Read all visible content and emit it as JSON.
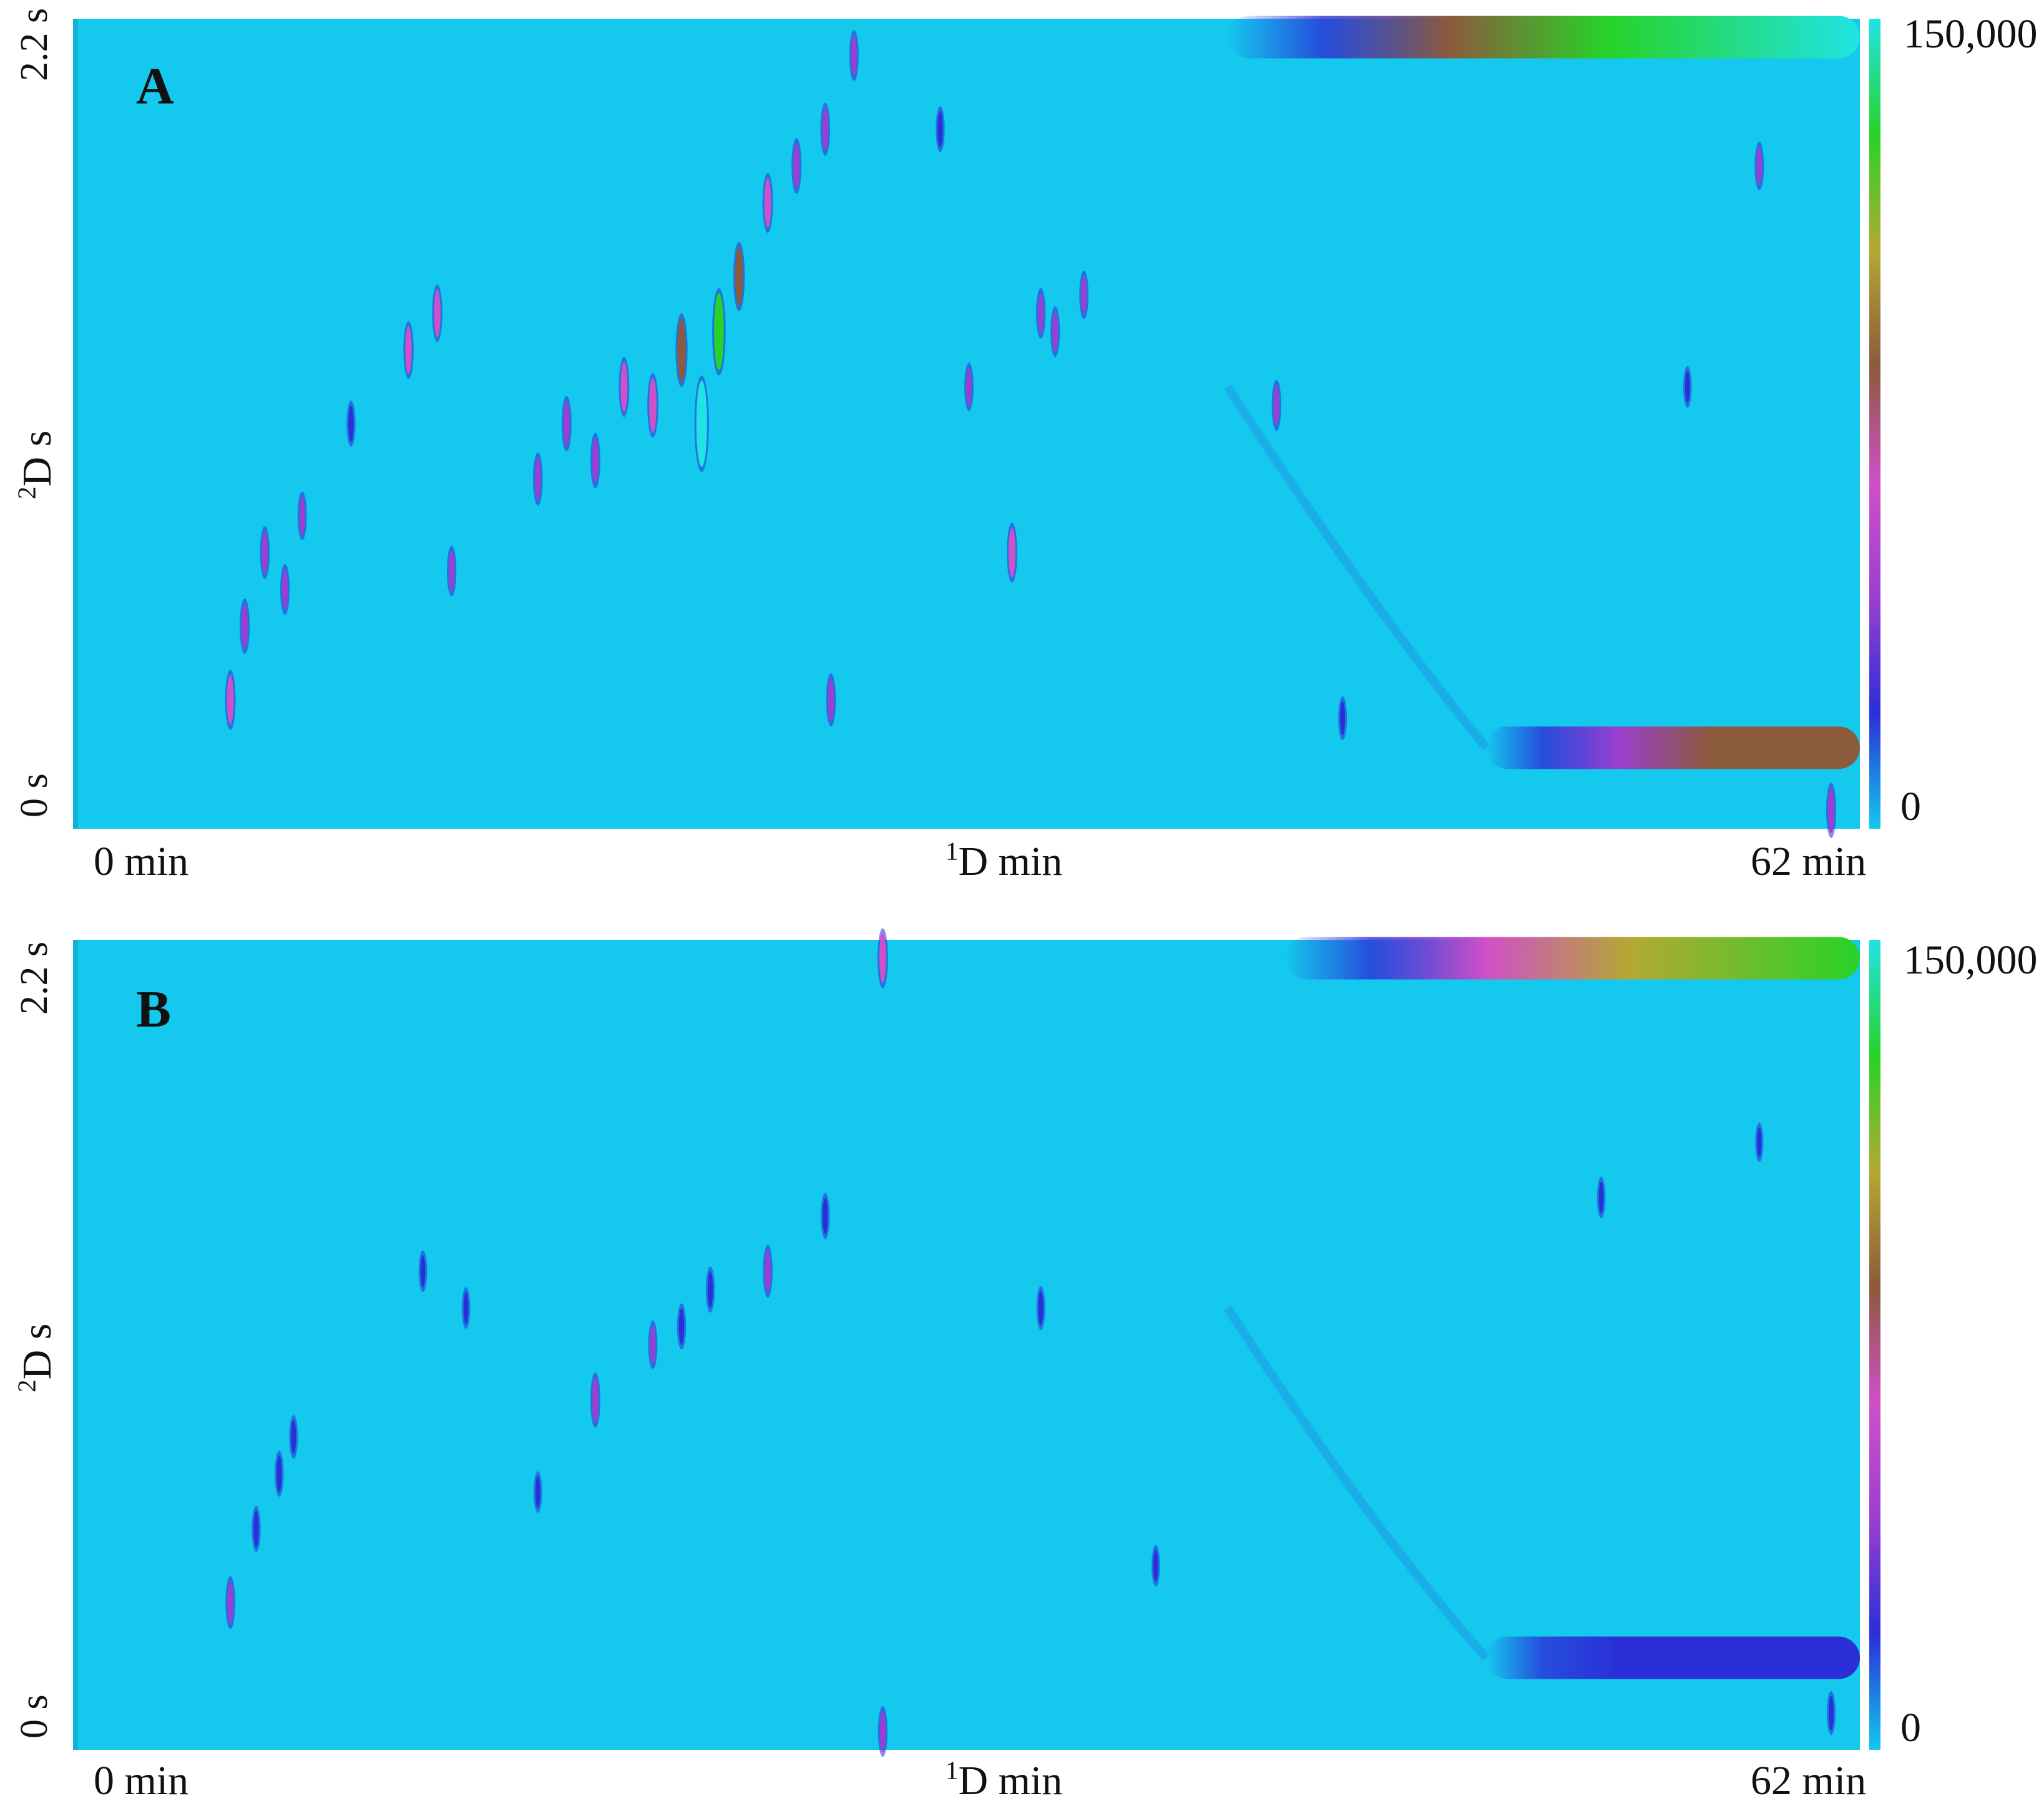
{
  "chart_data": [
    {
      "type": "heatmap",
      "panel": "A",
      "xlabel_sup": "1",
      "xlabel": "D min",
      "ylabel_sup": "2",
      "ylabel": "D s",
      "x_tick_start": "0 min",
      "x_tick_end": "62 min",
      "y_tick_top": "2.2 s",
      "y_tick_bottom": "0 s",
      "xlim": [
        0,
        62
      ],
      "ylim": [
        0,
        2.2
      ],
      "colorbar": {
        "min_label": "0",
        "max_label": "150,000",
        "range": [
          0,
          150000
        ],
        "colors": [
          "#14c8ee",
          "#2a2fd8",
          "#9a3fd0",
          "#d050c8",
          "#8c5a3c",
          "#b4a832",
          "#27d327",
          "#20e4e4"
        ]
      },
      "background_color": "#14c8ee",
      "bands": [
        {
          "name": "column bleed top",
          "x_start": 40,
          "x_end": 62,
          "y": 2.15,
          "peak": 150000
        },
        {
          "name": "column bleed bottom",
          "x_start": 49,
          "x_end": 62,
          "y": 0.22,
          "peak": 90000
        }
      ],
      "peaks": [
        {
          "x": 5.3,
          "y": 0.35,
          "i": 60000
        },
        {
          "x": 5.8,
          "y": 0.55,
          "i": 50000
        },
        {
          "x": 6.5,
          "y": 0.75,
          "i": 45000
        },
        {
          "x": 7.2,
          "y": 0.65,
          "i": 40000
        },
        {
          "x": 7.8,
          "y": 0.85,
          "i": 35000
        },
        {
          "x": 9.5,
          "y": 1.1,
          "i": 30000
        },
        {
          "x": 11.5,
          "y": 1.3,
          "i": 55000
        },
        {
          "x": 12.5,
          "y": 1.4,
          "i": 55000
        },
        {
          "x": 13.0,
          "y": 0.7,
          "i": 40000
        },
        {
          "x": 16.0,
          "y": 0.95,
          "i": 45000
        },
        {
          "x": 17.0,
          "y": 1.1,
          "i": 50000
        },
        {
          "x": 18.0,
          "y": 1.0,
          "i": 50000
        },
        {
          "x": 19.0,
          "y": 1.2,
          "i": 60000
        },
        {
          "x": 20.0,
          "y": 1.15,
          "i": 70000
        },
        {
          "x": 21.0,
          "y": 1.3,
          "i": 90000
        },
        {
          "x": 21.7,
          "y": 1.1,
          "i": 140000
        },
        {
          "x": 22.3,
          "y": 1.35,
          "i": 120000
        },
        {
          "x": 23.0,
          "y": 1.5,
          "i": 80000
        },
        {
          "x": 24.0,
          "y": 1.7,
          "i": 60000
        },
        {
          "x": 25.0,
          "y": 1.8,
          "i": 50000
        },
        {
          "x": 26.0,
          "y": 1.9,
          "i": 45000
        },
        {
          "x": 27.0,
          "y": 2.1,
          "i": 40000
        },
        {
          "x": 26.2,
          "y": 0.35,
          "i": 45000
        },
        {
          "x": 30.0,
          "y": 1.9,
          "i": 30000
        },
        {
          "x": 31.0,
          "y": 1.2,
          "i": 35000
        },
        {
          "x": 32.5,
          "y": 0.75,
          "i": 60000
        },
        {
          "x": 33.5,
          "y": 1.4,
          "i": 40000
        },
        {
          "x": 34.0,
          "y": 1.35,
          "i": 40000
        },
        {
          "x": 35.0,
          "y": 1.45,
          "i": 35000
        },
        {
          "x": 41.7,
          "y": 1.15,
          "i": 40000
        },
        {
          "x": 44.0,
          "y": 0.3,
          "i": 25000
        },
        {
          "x": 56.0,
          "y": 1.2,
          "i": 20000
        },
        {
          "x": 58.5,
          "y": 1.8,
          "i": 35000
        },
        {
          "x": 61.0,
          "y": 0.05,
          "i": 50000
        }
      ]
    },
    {
      "type": "heatmap",
      "panel": "B",
      "xlabel_sup": "1",
      "xlabel": "D min",
      "ylabel_sup": "2",
      "ylabel": "D s",
      "x_tick_start": "0 min",
      "x_tick_end": "62 min",
      "y_tick_top": "2.2 s",
      "y_tick_bottom": "0 s",
      "xlim": [
        0,
        62
      ],
      "ylim": [
        0,
        2.2
      ],
      "colorbar": {
        "min_label": "0",
        "max_label": "150,000",
        "range": [
          0,
          150000
        ],
        "colors": [
          "#14c8ee",
          "#2a2fd8",
          "#9a3fd0",
          "#d050c8",
          "#8c5a3c",
          "#b4a832",
          "#27d327",
          "#20e4e4"
        ]
      },
      "background_color": "#14c8ee",
      "bands": [
        {
          "name": "column bleed top",
          "x_start": 42,
          "x_end": 62,
          "y": 2.15,
          "peak": 120000
        },
        {
          "name": "column bleed bottom",
          "x_start": 49,
          "x_end": 62,
          "y": 0.25,
          "peak": 30000
        }
      ],
      "peaks": [
        {
          "x": 5.3,
          "y": 0.4,
          "i": 45000
        },
        {
          "x": 6.2,
          "y": 0.6,
          "i": 30000
        },
        {
          "x": 7.0,
          "y": 0.75,
          "i": 30000
        },
        {
          "x": 7.5,
          "y": 0.85,
          "i": 25000
        },
        {
          "x": 12.0,
          "y": 1.3,
          "i": 20000
        },
        {
          "x": 13.5,
          "y": 1.2,
          "i": 20000
        },
        {
          "x": 16.0,
          "y": 0.7,
          "i": 20000
        },
        {
          "x": 18.0,
          "y": 0.95,
          "i": 50000
        },
        {
          "x": 20.0,
          "y": 1.1,
          "i": 35000
        },
        {
          "x": 21.0,
          "y": 1.15,
          "i": 30000
        },
        {
          "x": 22.0,
          "y": 1.25,
          "i": 30000
        },
        {
          "x": 24.0,
          "y": 1.3,
          "i": 45000
        },
        {
          "x": 26.0,
          "y": 1.45,
          "i": 30000
        },
        {
          "x": 28.0,
          "y": 2.15,
          "i": 60000
        },
        {
          "x": 28.0,
          "y": 0.05,
          "i": 40000
        },
        {
          "x": 33.5,
          "y": 1.2,
          "i": 25000
        },
        {
          "x": 37.5,
          "y": 0.5,
          "i": 20000
        },
        {
          "x": 53.0,
          "y": 1.5,
          "i": 20000
        },
        {
          "x": 58.5,
          "y": 1.65,
          "i": 15000
        },
        {
          "x": 61.0,
          "y": 0.1,
          "i": 25000
        }
      ]
    }
  ]
}
